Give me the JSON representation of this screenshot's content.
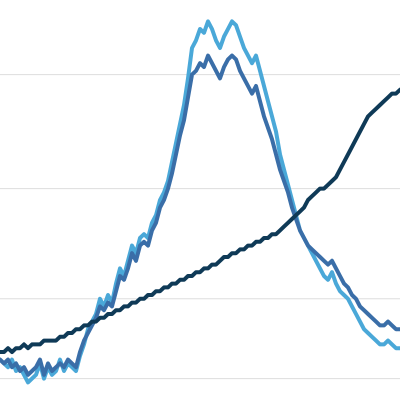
{
  "colors": {
    "background": "#ffffff",
    "grid": "#dddddd"
  },
  "chart_data": {
    "type": "line",
    "title": "",
    "xlabel": "",
    "ylabel": "",
    "grid": true,
    "legend": "none",
    "xlim": [
      0,
      100
    ],
    "ylim": [
      0,
      100
    ],
    "gridlines_y": [
      3,
      24,
      53,
      83
    ],
    "x": [
      0,
      1,
      2,
      3,
      4,
      5,
      6,
      7,
      8,
      9,
      10,
      11,
      12,
      13,
      14,
      15,
      16,
      17,
      18,
      19,
      20,
      21,
      22,
      23,
      24,
      25,
      26,
      27,
      28,
      29,
      30,
      31,
      32,
      33,
      34,
      35,
      36,
      37,
      38,
      39,
      40,
      41,
      42,
      43,
      44,
      45,
      46,
      47,
      48,
      49,
      50,
      51,
      52,
      53,
      54,
      55,
      56,
      57,
      58,
      59,
      60,
      61,
      62,
      63,
      64,
      65,
      66,
      67,
      68,
      69,
      70,
      71,
      72,
      73,
      74,
      75,
      76,
      77,
      78,
      79,
      80,
      81,
      82,
      83,
      84,
      85,
      86,
      87,
      88,
      89,
      90,
      91,
      92,
      93,
      94,
      95,
      96,
      97,
      98,
      99,
      100
    ],
    "series": [
      {
        "color": "#4aa8d8",
        "values": [
          8,
          7,
          6,
          8,
          5,
          6,
          4,
          2,
          3,
          4,
          7,
          3,
          6,
          4,
          5,
          8,
          5,
          7,
          6,
          5,
          9,
          12,
          16,
          18,
          20,
          24,
          22,
          25,
          23,
          28,
          32,
          30,
          34,
          38,
          36,
          40,
          41,
          40,
          44,
          46,
          50,
          52,
          55,
          60,
          65,
          70,
          75,
          82,
          90,
          92,
          95,
          94,
          97,
          95,
          92,
          90,
          93,
          95,
          97,
          96,
          93,
          90,
          88,
          86,
          88,
          84,
          80,
          76,
          72,
          68,
          62,
          58,
          54,
          50,
          46,
          42,
          40,
          38,
          36,
          34,
          32,
          30,
          29,
          31,
          28,
          26,
          25,
          24,
          22,
          20,
          18,
          16,
          15,
          14,
          13,
          12,
          12,
          13,
          12,
          11,
          11
        ]
      },
      {
        "color": "#3a6ea8",
        "values": [
          8,
          7,
          8,
          6,
          7,
          5,
          6,
          4,
          5,
          6,
          8,
          4,
          7,
          5,
          6,
          7,
          6,
          8,
          7,
          6,
          10,
          13,
          15,
          17,
          19,
          22,
          21,
          23,
          22,
          26,
          30,
          29,
          32,
          36,
          34,
          38,
          39,
          38,
          42,
          44,
          48,
          50,
          53,
          57,
          62,
          67,
          71,
          77,
          83,
          84,
          86,
          85,
          88,
          86,
          84,
          82,
          85,
          87,
          88,
          87,
          84,
          82,
          80,
          78,
          80,
          76,
          72,
          69,
          66,
          62,
          58,
          55,
          52,
          48,
          45,
          42,
          40,
          38,
          37,
          36,
          35,
          34,
          33,
          34,
          32,
          30,
          28,
          27,
          25,
          24,
          22,
          21,
          20,
          19,
          18,
          17,
          17,
          18,
          17,
          16,
          16
        ]
      },
      {
        "color": "#0f3a57",
        "values": [
          10,
          10,
          11,
          10,
          11,
          11,
          12,
          11,
          12,
          12,
          12,
          13,
          13,
          13,
          13,
          14,
          14,
          15,
          15,
          16,
          16,
          17,
          17,
          18,
          18,
          19,
          19,
          20,
          20,
          21,
          21,
          22,
          22,
          23,
          23,
          24,
          24,
          25,
          25,
          26,
          26,
          27,
          27,
          28,
          28,
          29,
          29,
          30,
          30,
          31,
          31,
          32,
          32,
          33,
          33,
          34,
          35,
          35,
          36,
          36,
          37,
          37,
          38,
          38,
          39,
          39,
          40,
          40,
          41,
          41,
          42,
          43,
          44,
          45,
          46,
          47,
          48,
          50,
          51,
          52,
          53,
          53,
          54,
          55,
          56,
          58,
          60,
          62,
          64,
          66,
          68,
          70,
          72,
          73,
          74,
          75,
          76,
          77,
          78,
          78,
          79
        ]
      }
    ]
  }
}
